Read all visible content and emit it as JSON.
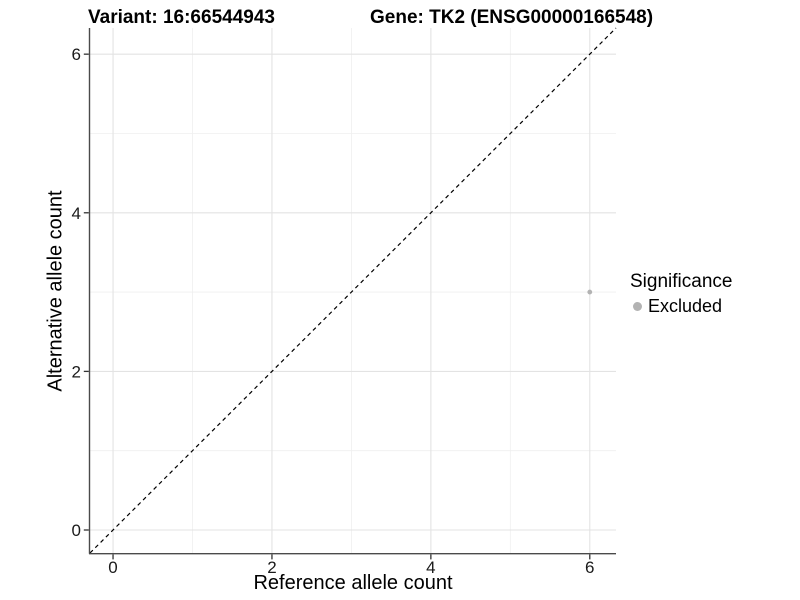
{
  "chart_data": {
    "type": "scatter",
    "titles": {
      "left": "Variant: 16:66544943",
      "right": "Gene: TK2 (ENSG00000166548)"
    },
    "xlabel": "Reference allele count",
    "ylabel": "Alternative allele count",
    "xlim": [
      -0.29,
      6.33
    ],
    "ylim": [
      -0.29,
      6.33
    ],
    "xticks": [
      0,
      2,
      4,
      6
    ],
    "yticks": [
      0,
      2,
      4,
      6
    ],
    "minor_gridlines": [
      1,
      3,
      5
    ],
    "grid": true,
    "identity_line": {
      "style": "dashed",
      "color": "#000000"
    },
    "series": [
      {
        "name": "Excluded",
        "color": "#b3b3b3",
        "points": [
          {
            "x": 6,
            "y": 3
          }
        ]
      }
    ],
    "legend": {
      "title": "Significance",
      "position": "right",
      "entries": [
        {
          "label": "Excluded",
          "color": "#b3b3b3"
        }
      ]
    },
    "colors": {
      "grid_major": "#e3e3e3",
      "grid_minor": "#efefef",
      "axis_line": "#4a4a4a",
      "tick_mark": "#333333",
      "tick_text": "#1a1a1a"
    }
  }
}
